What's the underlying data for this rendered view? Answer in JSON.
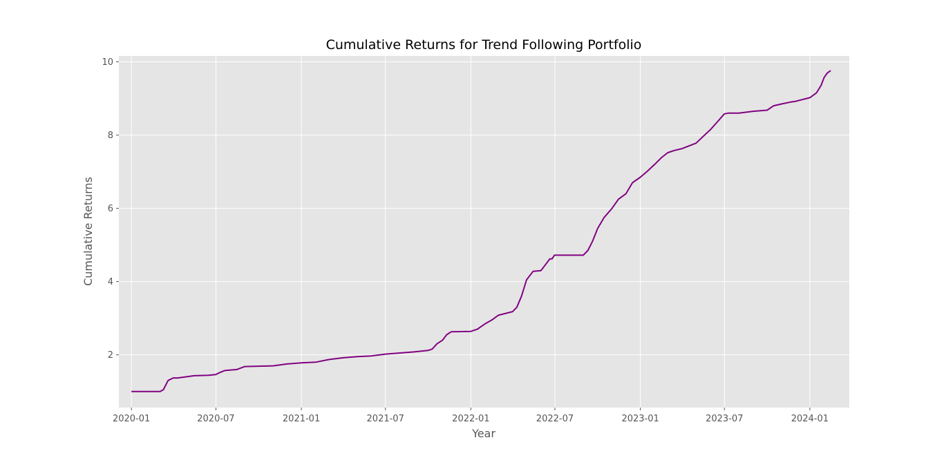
{
  "chart_data": {
    "type": "line",
    "title": "Cumulative Returns for Trend Following Portfolio",
    "xlabel": "Year",
    "ylabel": "Cumulative Returns",
    "xlim": [
      "2019-12-05",
      "2024-03-26"
    ],
    "ylim": [
      0.56,
      10.16
    ],
    "grid": true,
    "x_ticks": [
      "2020-01",
      "2020-07",
      "2021-01",
      "2021-07",
      "2022-01",
      "2022-07",
      "2023-01",
      "2023-07",
      "2024-01"
    ],
    "y_ticks": [
      2,
      4,
      6,
      8,
      10
    ],
    "y_tick_labels": [
      "2",
      "4",
      "6",
      "8",
      "10"
    ],
    "colors": {
      "line": "#800080",
      "plot_background": "#e5e5e5",
      "grid": "#ffffff",
      "tick_text": "#555555"
    },
    "series": [
      {
        "x": [
          "2020-01-01",
          "2020-03-03",
          "2020-03-10",
          "2020-03-20",
          "2020-03-31",
          "2020-04-10",
          "2020-05-15",
          "2020-06-15",
          "2020-06-30",
          "2020-07-10",
          "2020-07-20",
          "2020-08-15",
          "2020-09-01",
          "2020-10-01",
          "2020-11-01",
          "2020-12-01",
          "2021-01-01",
          "2021-02-01",
          "2021-03-01",
          "2021-04-01",
          "2021-05-01",
          "2021-06-01",
          "2021-07-01",
          "2021-08-01",
          "2021-09-01",
          "2021-10-01",
          "2021-10-10",
          "2021-10-20",
          "2021-11-01",
          "2021-11-10",
          "2021-11-20",
          "2022-01-01",
          "2022-01-15",
          "2022-02-01",
          "2022-02-15",
          "2022-03-01",
          "2022-04-01",
          "2022-04-10",
          "2022-04-20",
          "2022-05-01",
          "2022-05-15",
          "2022-06-01",
          "2022-06-10",
          "2022-06-20",
          "2022-06-25",
          "2022-06-30",
          "2022-07-31",
          "2022-08-31",
          "2022-09-10",
          "2022-09-20",
          "2022-10-01",
          "2022-10-15",
          "2022-11-01",
          "2022-11-15",
          "2022-12-01",
          "2022-12-15",
          "2023-01-01",
          "2023-01-15",
          "2023-02-01",
          "2023-02-15",
          "2023-03-01",
          "2023-03-15",
          "2023-04-01",
          "2023-05-01",
          "2023-05-15",
          "2023-06-01",
          "2023-06-15",
          "2023-07-01",
          "2023-07-10",
          "2023-08-01",
          "2023-09-01",
          "2023-10-01",
          "2023-10-15",
          "2023-11-01",
          "2023-11-20",
          "2023-12-01",
          "2024-01-01",
          "2024-01-15",
          "2024-01-25",
          "2024-02-01",
          "2024-02-08",
          "2024-02-15"
        ],
        "y": [
          1.0,
          1.0,
          1.05,
          1.3,
          1.37,
          1.37,
          1.43,
          1.44,
          1.46,
          1.52,
          1.57,
          1.6,
          1.68,
          1.69,
          1.7,
          1.75,
          1.78,
          1.8,
          1.87,
          1.92,
          1.95,
          1.97,
          2.02,
          2.05,
          2.08,
          2.12,
          2.16,
          2.3,
          2.4,
          2.55,
          2.63,
          2.64,
          2.7,
          2.85,
          2.95,
          3.08,
          3.18,
          3.3,
          3.6,
          4.05,
          4.28,
          4.3,
          4.45,
          4.62,
          4.62,
          4.72,
          4.72,
          4.72,
          4.85,
          5.1,
          5.45,
          5.75,
          6.0,
          6.25,
          6.4,
          6.7,
          6.85,
          7.0,
          7.2,
          7.38,
          7.52,
          7.58,
          7.63,
          7.78,
          7.95,
          8.15,
          8.35,
          8.58,
          8.6,
          8.6,
          8.65,
          8.68,
          8.8,
          8.85,
          8.9,
          8.92,
          9.02,
          9.15,
          9.35,
          9.58,
          9.7,
          9.76
        ]
      }
    ]
  }
}
